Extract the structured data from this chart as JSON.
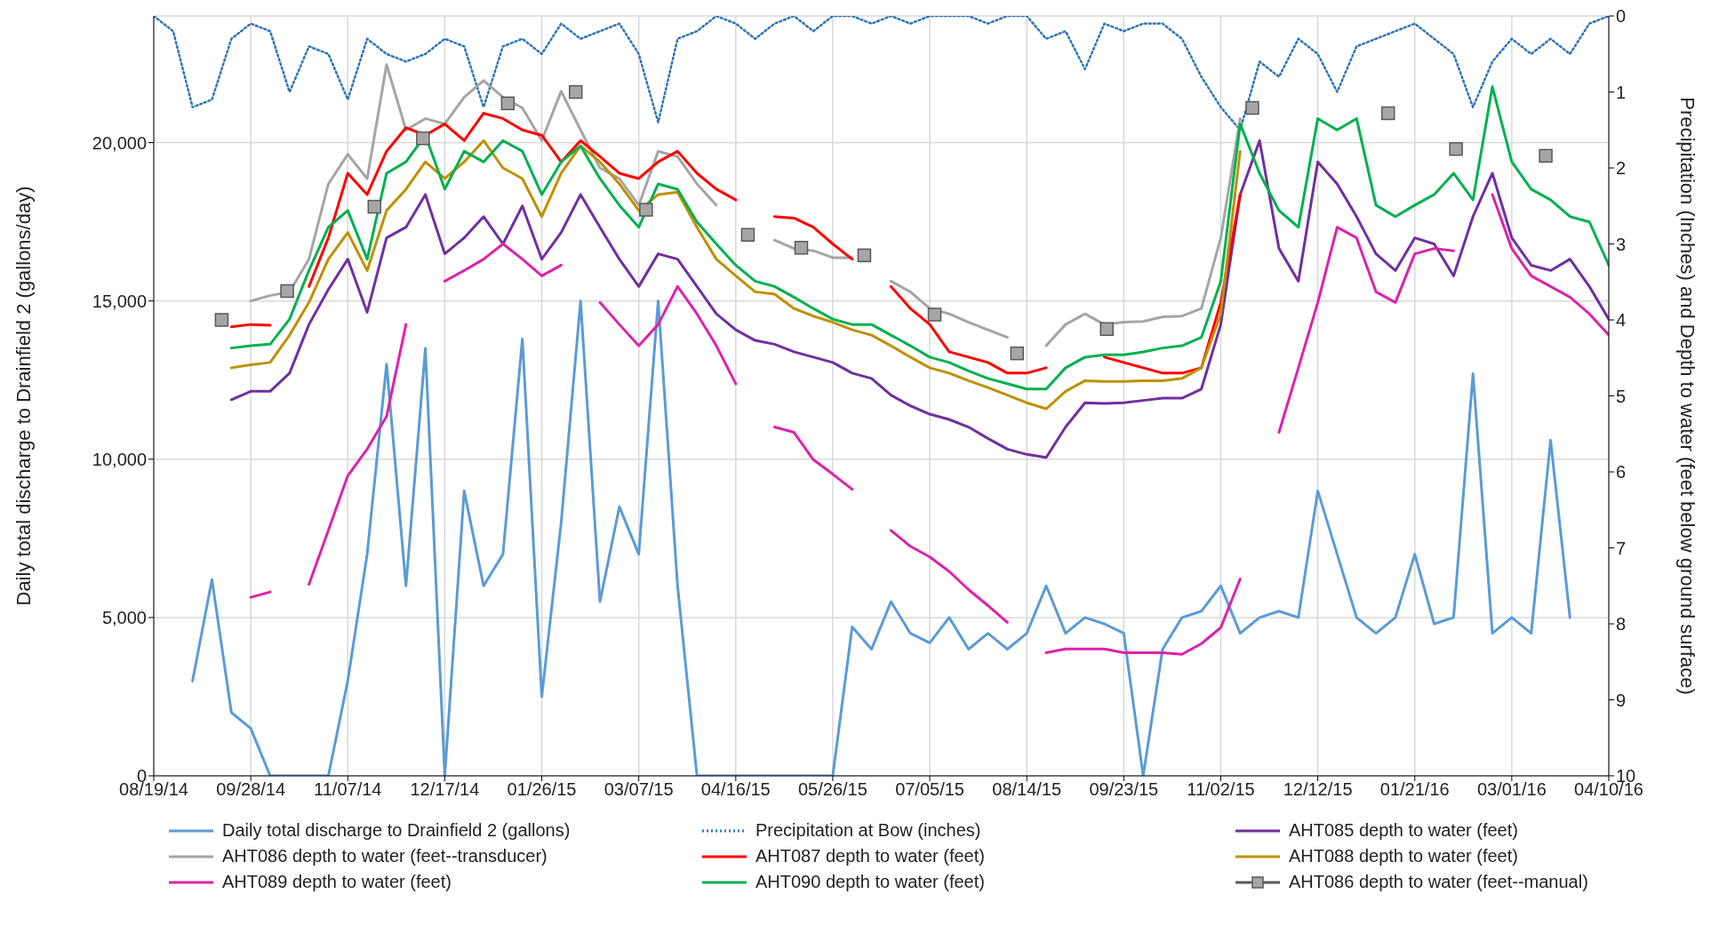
{
  "chart_data": {
    "type": "line",
    "xlabel": null,
    "ylabel": "Daily total discharge to Drainfield 2 (gallons/day)",
    "y2label": "Precipitation (Inches) and Depth to water (feet below ground surface)",
    "x": [
      "2014-08-19",
      "2014-08-27",
      "2014-09-04",
      "2014-09-12",
      "2014-09-20",
      "2014-09-28",
      "2014-10-06",
      "2014-10-14",
      "2014-10-22",
      "2014-10-30",
      "2014-11-07",
      "2014-11-15",
      "2014-11-23",
      "2014-12-01",
      "2014-12-09",
      "2014-12-17",
      "2014-12-25",
      "2015-01-02",
      "2015-01-10",
      "2015-01-18",
      "2015-01-26",
      "2015-02-03",
      "2015-02-11",
      "2015-02-19",
      "2015-02-27",
      "2015-03-07",
      "2015-03-15",
      "2015-03-23",
      "2015-03-31",
      "2015-04-08",
      "2015-04-16",
      "2015-04-24",
      "2015-05-02",
      "2015-05-10",
      "2015-05-18",
      "2015-05-26",
      "2015-06-03",
      "2015-06-11",
      "2015-06-19",
      "2015-06-27",
      "2015-07-05",
      "2015-07-13",
      "2015-07-21",
      "2015-07-29",
      "2015-08-06",
      "2015-08-14",
      "2015-08-22",
      "2015-08-30",
      "2015-09-07",
      "2015-09-15",
      "2015-09-23",
      "2015-10-01",
      "2015-10-09",
      "2015-10-17",
      "2015-10-25",
      "2015-11-02",
      "2015-11-10",
      "2015-11-18",
      "2015-11-26",
      "2015-12-04",
      "2015-12-12",
      "2015-12-20",
      "2015-12-28",
      "2016-01-05",
      "2016-01-13",
      "2016-01-21",
      "2016-01-29",
      "2016-02-06",
      "2016-02-14",
      "2016-02-22",
      "2016-03-01",
      "2016-03-09",
      "2016-03-17",
      "2016-03-25",
      "2016-04-02",
      "2016-04-10"
    ],
    "series": [
      {
        "name": "Daily total discharge to Drainfield 2 (gallons)",
        "color": "#5b9bd5",
        "values": [
          null,
          null,
          3000,
          6200,
          2000,
          1500,
          0,
          0,
          0,
          0,
          3000,
          7000,
          13000,
          6000,
          13500,
          0,
          9000,
          6000,
          7000,
          13800,
          2500,
          8000,
          15000,
          5500,
          8500,
          7000,
          15000,
          6000,
          0,
          0,
          0,
          0,
          0,
          0,
          0,
          0,
          4700,
          4000,
          5500,
          4500,
          4200,
          5000,
          4000,
          4500,
          4000,
          4500,
          6000,
          4500,
          5000,
          4800,
          4500,
          0,
          4000,
          5000,
          5200,
          6000,
          4500,
          5000,
          5200,
          5000,
          9000,
          7000,
          5000,
          4500,
          5000,
          7000,
          4800,
          5000,
          12700,
          4500,
          5000,
          4500,
          10600,
          5000,
          null,
          null
        ]
      },
      {
        "name": "Precipitation at Bow (inches)",
        "axis": "y2",
        "line_style": "dotted",
        "color": "#2e75b6",
        "values": [
          0,
          0.2,
          1.2,
          1.1,
          0.3,
          0.1,
          0.2,
          1.0,
          0.4,
          0.5,
          1.1,
          0.3,
          0.5,
          0.6,
          0.5,
          0.3,
          0.4,
          1.2,
          0.4,
          0.3,
          0.5,
          0.1,
          0.3,
          0.2,
          0.1,
          0.5,
          1.4,
          0.3,
          0.2,
          0,
          0.1,
          0.3,
          0.1,
          0,
          0.2,
          0,
          0,
          0.1,
          0,
          0.1,
          0,
          0,
          0,
          0.1,
          0,
          0,
          0.3,
          0.2,
          0.7,
          0.1,
          0.2,
          0.1,
          0.1,
          0.3,
          0.8,
          1.2,
          1.5,
          0.6,
          0.8,
          0.3,
          0.5,
          1.0,
          0.4,
          0.3,
          0.2,
          0.1,
          0.3,
          0.5,
          1.2,
          0.6,
          0.3,
          0.5,
          0.3,
          0.5,
          0.1,
          0
        ]
      },
      {
        "name": "AHT085 depth to water (feet)",
        "axis": "y2",
        "color": "#7030a0",
        "values": [
          null,
          null,
          null,
          null,
          5.05,
          4.94,
          4.94,
          4.7,
          4.06,
          3.6,
          3.2,
          3.9,
          2.92,
          2.78,
          2.35,
          3.13,
          2.92,
          2.64,
          3.0,
          2.5,
          3.2,
          2.85,
          2.35,
          2.78,
          3.2,
          3.56,
          3.13,
          3.2,
          3.56,
          3.92,
          4.13,
          4.27,
          4.32,
          4.42,
          4.49,
          4.56,
          4.7,
          4.77,
          4.99,
          5.13,
          5.24,
          5.31,
          5.41,
          5.56,
          5.7,
          5.77,
          5.81,
          5.41,
          5.09,
          5.1,
          5.09,
          5.06,
          5.03,
          5.03,
          4.91,
          4.06,
          2.35,
          1.64,
          3.06,
          3.49,
          1.92,
          2.21,
          2.64,
          3.13,
          3.35,
          2.92,
          3.0,
          3.42,
          2.64,
          2.07,
          2.92,
          3.28,
          3.35,
          3.2,
          3.56,
          3.99
        ]
      },
      {
        "name": "AHT086 depth to water (feet--transducer)",
        "axis": "y2",
        "color": "#a5a5a5",
        "values": [
          null,
          null,
          null,
          null,
          null,
          3.75,
          3.68,
          3.63,
          3.2,
          2.21,
          1.82,
          2.14,
          0.64,
          1.5,
          1.35,
          1.42,
          1.07,
          0.85,
          1.07,
          1.21,
          1.64,
          0.99,
          1.5,
          2.0,
          2.14,
          2.49,
          1.78,
          1.85,
          2.21,
          2.49,
          null,
          null,
          2.95,
          3.06,
          3.09,
          3.18,
          3.18,
          null,
          3.49,
          3.63,
          3.85,
          3.92,
          4.03,
          4.13,
          4.23,
          null,
          4.34,
          4.06,
          3.92,
          4.06,
          4.03,
          4.02,
          3.96,
          3.95,
          3.85,
          2.92,
          1.35,
          null,
          null,
          null,
          null,
          null,
          null,
          null,
          null,
          null,
          null,
          null,
          null,
          null,
          null,
          null,
          null,
          null,
          null,
          null
        ]
      },
      {
        "name": "AHT087 depth to water (feet)",
        "axis": "y2",
        "color": "#ff0000",
        "values": [
          null,
          null,
          null,
          null,
          4.09,
          4.06,
          4.07,
          null,
          3.56,
          2.92,
          2.07,
          2.35,
          1.78,
          1.47,
          1.57,
          1.42,
          1.64,
          1.28,
          1.35,
          1.5,
          1.57,
          1.92,
          1.64,
          1.85,
          2.07,
          2.14,
          1.92,
          1.78,
          2.07,
          2.28,
          2.42,
          null,
          2.64,
          2.66,
          2.78,
          3.0,
          3.2,
          null,
          3.56,
          3.85,
          4.06,
          4.42,
          4.49,
          4.56,
          4.7,
          4.7,
          4.63,
          null,
          null,
          4.49,
          4.56,
          4.63,
          4.7,
          4.7,
          4.63,
          3.77,
          2.35,
          null,
          null,
          null,
          null,
          null,
          null,
          null,
          null,
          null,
          null,
          null,
          null,
          null,
          null,
          null,
          null,
          null,
          null,
          null
        ]
      },
      {
        "name": "AHT088 depth to water (feet)",
        "axis": "y2",
        "color": "#bf9000",
        "values": [
          null,
          null,
          null,
          null,
          4.63,
          4.59,
          4.56,
          4.2,
          3.77,
          3.2,
          2.85,
          3.35,
          2.56,
          2.28,
          1.92,
          2.14,
          1.92,
          1.64,
          2.0,
          2.14,
          2.64,
          2.07,
          1.71,
          1.92,
          2.21,
          2.56,
          2.35,
          2.32,
          2.78,
          3.2,
          3.42,
          3.63,
          3.66,
          3.85,
          3.95,
          4.03,
          4.13,
          4.2,
          4.34,
          4.49,
          4.63,
          4.7,
          4.8,
          4.89,
          4.99,
          5.09,
          5.17,
          4.94,
          4.8,
          4.81,
          4.81,
          4.8,
          4.8,
          4.77,
          4.63,
          3.92,
          1.78,
          null,
          null,
          null,
          null,
          null,
          null,
          null,
          null,
          null,
          null,
          null,
          null,
          null,
          null,
          null,
          null,
          null,
          null,
          null
        ]
      },
      {
        "name": "AHT089 depth to water (feet)",
        "axis": "y2",
        "color": "#dd22aa",
        "values": [
          null,
          null,
          null,
          null,
          null,
          7.65,
          7.58,
          null,
          7.48,
          6.77,
          6.05,
          5.7,
          5.27,
          4.06,
          null,
          3.49,
          3.35,
          3.2,
          3.0,
          3.2,
          3.42,
          3.28,
          null,
          3.77,
          4.06,
          4.34,
          4.06,
          3.56,
          3.92,
          4.34,
          4.84,
          null,
          5.41,
          5.48,
          5.84,
          6.03,
          6.23,
          null,
          6.77,
          6.98,
          7.12,
          7.31,
          7.55,
          7.76,
          7.98,
          null,
          8.38,
          8.33,
          8.33,
          8.33,
          8.38,
          8.38,
          8.38,
          8.4,
          8.26,
          8.05,
          7.41,
          null,
          5.48,
          4.63,
          3.77,
          2.78,
          2.92,
          3.63,
          3.77,
          3.13,
          3.06,
          3.09,
          null,
          2.35,
          3.06,
          3.42,
          3.56,
          3.7,
          3.92,
          4.2
        ]
      },
      {
        "name": "AHT090 depth to water (feet)",
        "axis": "y2",
        "color": "#00b050",
        "values": [
          null,
          null,
          null,
          null,
          4.37,
          4.34,
          4.32,
          3.99,
          3.35,
          2.78,
          2.56,
          3.2,
          2.07,
          1.92,
          1.57,
          2.28,
          1.78,
          1.92,
          1.64,
          1.78,
          2.35,
          1.92,
          1.71,
          2.14,
          2.49,
          2.78,
          2.21,
          2.28,
          2.71,
          3.0,
          3.28,
          3.49,
          3.56,
          3.7,
          3.85,
          3.99,
          4.06,
          4.06,
          4.2,
          4.34,
          4.49,
          4.56,
          4.67,
          4.77,
          4.84,
          4.91,
          4.91,
          4.63,
          4.49,
          4.46,
          4.46,
          4.42,
          4.37,
          4.34,
          4.23,
          3.49,
          1.42,
          2.07,
          2.56,
          2.78,
          1.35,
          1.5,
          1.35,
          2.49,
          2.64,
          2.49,
          2.35,
          2.07,
          2.42,
          0.93,
          1.92,
          2.28,
          2.42,
          2.64,
          2.71,
          3.28
        ]
      },
      {
        "name": "AHT086 depth to water (feet--manual)",
        "type": "scatter",
        "axis": "y2",
        "marker": "square",
        "color": "#a6a6a6",
        "x": [
          "2014-09-16",
          "2014-10-13",
          "2014-11-18",
          "2014-12-08",
          "2015-01-12",
          "2015-02-09",
          "2015-03-10",
          "2015-04-21",
          "2015-05-13",
          "2015-06-08",
          "2015-07-07",
          "2015-08-10",
          "2015-09-16",
          "2015-11-15",
          "2016-01-10",
          "2016-02-07",
          "2016-03-15"
        ],
        "values": [
          4.0,
          3.62,
          2.51,
          1.61,
          1.15,
          1.0,
          2.55,
          2.88,
          3.05,
          3.15,
          3.93,
          4.44,
          4.12,
          1.21,
          1.28,
          1.75,
          1.84
        ]
      }
    ],
    "xlim": [
      "2014-08-19",
      "2016-04-10"
    ],
    "xticks": [
      {
        "value": "2014-08-19",
        "label": "08/19/14"
      },
      {
        "value": "2014-09-28",
        "label": "09/28/14"
      },
      {
        "value": "2014-11-07",
        "label": "11/07/14"
      },
      {
        "value": "2014-12-17",
        "label": "12/17/14"
      },
      {
        "value": "2015-01-26",
        "label": "01/26/15"
      },
      {
        "value": "2015-03-07",
        "label": "03/07/15"
      },
      {
        "value": "2015-04-16",
        "label": "04/16/15"
      },
      {
        "value": "2015-05-26",
        "label": "05/26/15"
      },
      {
        "value": "2015-07-05",
        "label": "07/05/15"
      },
      {
        "value": "2015-08-14",
        "label": "08/14/15"
      },
      {
        "value": "2015-09-23",
        "label": "09/23/15"
      },
      {
        "value": "2015-11-02",
        "label": "11/02/15"
      },
      {
        "value": "2015-12-12",
        "label": "12/12/15"
      },
      {
        "value": "2016-01-21",
        "label": "01/21/16"
      },
      {
        "value": "2016-03-01",
        "label": "03/01/16"
      },
      {
        "value": "2016-04-10",
        "label": "04/10/16"
      }
    ],
    "ylim": [
      0,
      24000
    ],
    "yticks": [
      0,
      {
        "value": 5000,
        "label": "5,000"
      },
      {
        "value": 10000,
        "label": "10,000"
      },
      {
        "value": 15000,
        "label": "15,000"
      },
      {
        "value": 20000,
        "label": "20,000"
      }
    ],
    "y2lim": [
      10,
      0
    ],
    "y2ticks": [
      0,
      1,
      2,
      3,
      4,
      5,
      6,
      7,
      8,
      9,
      10
    ],
    "grid": true,
    "legend": "bottom"
  }
}
